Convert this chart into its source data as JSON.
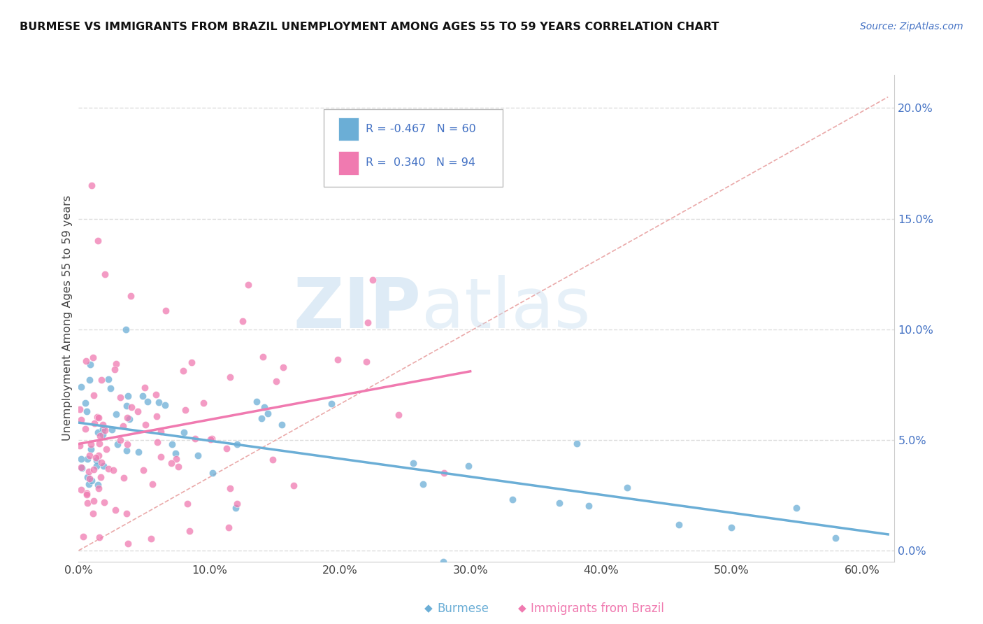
{
  "title": "BURMESE VS IMMIGRANTS FROM BRAZIL UNEMPLOYMENT AMONG AGES 55 TO 59 YEARS CORRELATION CHART",
  "source": "Source: ZipAtlas.com",
  "ylabel": "Unemployment Among Ages 55 to 59 years",
  "color_burmese": "#6baed6",
  "color_brazil": "#f07ab0",
  "legend1_r": "-0.467",
  "legend1_n": "60",
  "legend2_r": "0.340",
  "legend2_n": "94",
  "xlim": [
    0.0,
    0.625
  ],
  "ylim": [
    -0.005,
    0.215
  ],
  "xtick_vals": [
    0.0,
    0.1,
    0.2,
    0.3,
    0.4,
    0.5,
    0.6
  ],
  "xtick_labels": [
    "0.0%",
    "10.0%",
    "20.0%",
    "30.0%",
    "40.0%",
    "50.0%",
    "60.0%"
  ],
  "ytick_vals": [
    0.0,
    0.05,
    0.1,
    0.15,
    0.2
  ],
  "ytick_labels": [
    "0.0%",
    "5.0%",
    "10.0%",
    "15.0%",
    "20.0%"
  ],
  "watermark_zip": "ZIP",
  "watermark_atlas": "atlas",
  "trendline_dashed_color": "#e8a0a0",
  "grid_color": "#dddddd"
}
